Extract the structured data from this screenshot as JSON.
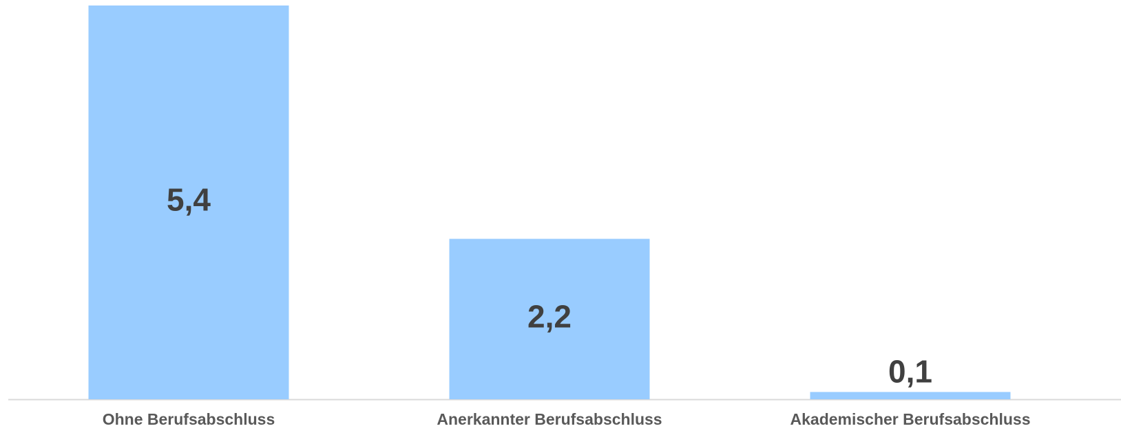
{
  "chart_data": {
    "type": "bar",
    "categories": [
      "Ohne Berufsabschluss",
      "Anerkannter Berufsabschluss",
      "Akademischer Berufsabschluss"
    ],
    "values": [
      5.4,
      2.2,
      0.1
    ],
    "value_labels": [
      "5,4",
      "2,2",
      "0,1"
    ],
    "color": "#99ccff"
  }
}
